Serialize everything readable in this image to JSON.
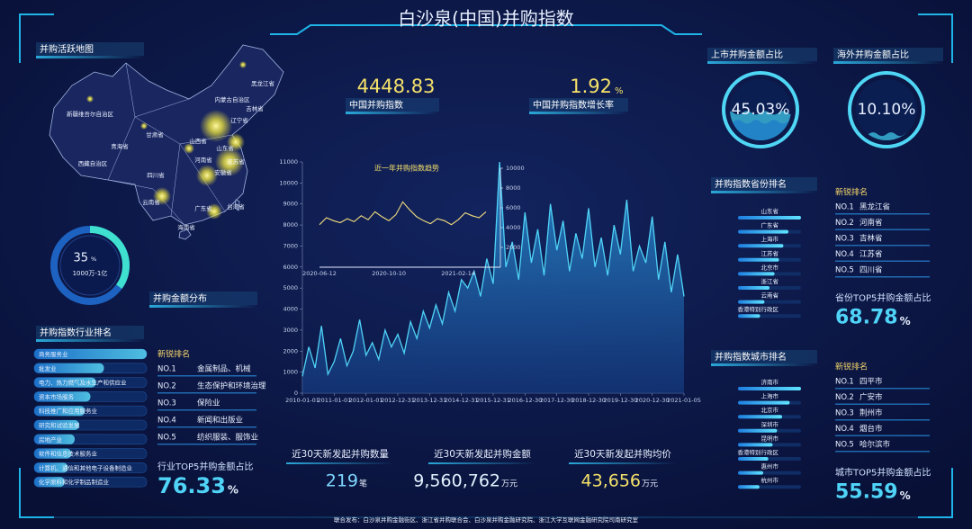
{
  "title": "白沙泉(中国)并购指数",
  "map": {
    "title": "并购活跃地图",
    "labels": [
      "黑龙江省",
      "内蒙古自治区",
      "吉林省",
      "辽宁省",
      "新疆维吾尔自治区",
      "青海省",
      "西藏自治区",
      "甘肃省",
      "山西省",
      "山东省",
      "河南省",
      "江苏省",
      "安徽省",
      "四川省",
      "云南省",
      "台湾省",
      "海南省",
      "广东省"
    ]
  },
  "amount_distribution": {
    "title": "并购金额分布",
    "value": 35,
    "unit": "%",
    "range": "1000万-1亿"
  },
  "industry_ranking": {
    "title": "并购指数行业排名",
    "items": [
      {
        "name": "商务服务业",
        "value": 100
      },
      {
        "name": "批发业",
        "value": 62
      },
      {
        "name": "电力、热力燃气及水生产和供应业",
        "value": 55
      },
      {
        "name": "资本市场服务",
        "value": 50
      },
      {
        "name": "科技推广和应用服务业",
        "value": 45
      },
      {
        "name": "研究和试验发展",
        "value": 40
      },
      {
        "name": "房地产业",
        "value": 36
      },
      {
        "name": "软件和信息技术服务业",
        "value": 33
      },
      {
        "name": "计算机、通信和其他电子设备制造业",
        "value": 30
      },
      {
        "name": "化学原料和化学制品制造业",
        "value": 27
      }
    ]
  },
  "industry_new": {
    "title": "新锐排名",
    "items": [
      {
        "rank": "NO.1",
        "name": "金属制品、机械"
      },
      {
        "rank": "NO.2",
        "name": "生态保护和环境治理"
      },
      {
        "rank": "NO.3",
        "name": "保险业"
      },
      {
        "rank": "NO.4",
        "name": "新闻和出版业"
      },
      {
        "rank": "NO.5",
        "name": "纺织服装、服饰业"
      }
    ],
    "share_label": "行业TOP5并购金额占比",
    "share": 76.33,
    "unit": "%"
  },
  "index": {
    "value": 4448.83,
    "label": "中国并购指数"
  },
  "growth": {
    "value": 1.92,
    "unit": "%",
    "label": "中国并购指数增长率"
  },
  "chart_data": [
    {
      "type": "line",
      "categories": [
        "2010-01-01",
        null,
        null,
        null,
        null,
        "2011-01-01",
        null,
        null,
        null,
        null,
        "2012-01-01",
        null,
        null,
        null,
        null,
        "2012-12-31",
        null,
        null,
        null,
        null,
        "2013-12-31",
        null,
        null,
        null,
        null,
        "2014-12-31",
        null,
        null,
        null,
        null,
        "2015-12-31",
        null,
        null,
        null,
        null,
        "2016-12-30",
        null,
        null,
        null,
        null,
        "2017-12-30",
        null,
        null,
        null,
        null,
        "2018-12-30",
        null,
        null,
        null,
        null,
        "2019-12-30",
        null,
        null,
        null,
        null,
        "2020-12-30",
        null,
        null,
        null,
        null,
        "2021-01-05"
      ],
      "series": [
        {
          "color": "#4fd3f7",
          "values": [
            800,
            2200,
            1200,
            3200,
            900,
            1500,
            2600,
            1300,
            2000,
            3500,
            1800,
            2400,
            1600,
            3000,
            2200,
            2800,
            1900,
            3400,
            2600,
            3900,
            3100,
            4200,
            3300,
            4800,
            3900,
            5400,
            5000,
            5800,
            4600,
            6400,
            5200,
            11000,
            6000,
            7200,
            5400,
            8600,
            6200,
            7800,
            5600,
            9000,
            6800,
            8200,
            5800,
            7600,
            6400,
            8800,
            6000,
            7400,
            5600,
            8000,
            6600,
            9200,
            5800,
            7000,
            6200,
            8400,
            5400,
            7200,
            4800,
            6600,
            4600
          ]
        }
      ],
      "ylim": [
        0,
        11000
      ],
      "yticks": [
        0,
        1000,
        2000,
        3000,
        4000,
        5000,
        6000,
        7000,
        8000,
        9000,
        10000,
        11000
      ]
    },
    {
      "type": "line",
      "title": "近一年并购指数趋势",
      "categories": [
        "2020-06-12",
        null,
        null,
        null,
        null,
        null,
        null,
        null,
        null,
        null,
        "2020-10-10",
        null,
        null,
        null,
        null,
        null,
        null,
        null,
        null,
        null,
        "2021-02-14",
        null,
        null,
        null,
        null
      ],
      "series": [
        {
          "color": "#f3de7c",
          "values": [
            4300,
            5000,
            4700,
            4500,
            4900,
            4600,
            5200,
            4800,
            5600,
            5100,
            4700,
            5300,
            6600,
            5800,
            5100,
            4700,
            4400,
            4900,
            4700,
            4300,
            4800,
            5500,
            5200,
            5000,
            5600
          ]
        }
      ],
      "ylim": [
        0,
        10000
      ],
      "yticks": [
        2000,
        4000,
        6000,
        8000,
        10000
      ]
    }
  ],
  "listed_share": {
    "title": "上市并购金额占比",
    "value": 45.03,
    "value_label": "45.03%"
  },
  "overseas_share": {
    "title": "海外并购金额占比",
    "value": 10.1,
    "value_label": "10.10%"
  },
  "province_ranking": {
    "title": "并购指数省份排名",
    "items": [
      {
        "name": "山东省",
        "value": 100
      },
      {
        "name": "广东省",
        "value": 80
      },
      {
        "name": "上海市",
        "value": 72
      },
      {
        "name": "江苏省",
        "value": 65
      },
      {
        "name": "北京市",
        "value": 58
      },
      {
        "name": "浙江省",
        "value": 50
      },
      {
        "name": "云南省",
        "value": 42
      },
      {
        "name": "香港特别行政区",
        "value": 35
      }
    ]
  },
  "province_new": {
    "title": "新锐排名",
    "items": [
      {
        "rank": "NO.1",
        "name": "黑龙江省"
      },
      {
        "rank": "NO.2",
        "name": "河南省"
      },
      {
        "rank": "NO.3",
        "name": "吉林省"
      },
      {
        "rank": "NO.4",
        "name": "江苏省"
      },
      {
        "rank": "NO.5",
        "name": "四川省"
      }
    ],
    "share_label": "省份TOP5并购金额占比",
    "share": 68.78,
    "unit": "%"
  },
  "city_ranking": {
    "title": "并购指数城市排名",
    "items": [
      {
        "name": "济南市",
        "value": 100
      },
      {
        "name": "上海市",
        "value": 82
      },
      {
        "name": "北京市",
        "value": 70
      },
      {
        "name": "深圳市",
        "value": 62
      },
      {
        "name": "昆明市",
        "value": 55
      },
      {
        "name": "香港特别行政区",
        "value": 48
      },
      {
        "name": "惠州市",
        "value": 40
      },
      {
        "name": "杭州市",
        "value": 34
      }
    ]
  },
  "city_new": {
    "title": "新锐排名",
    "items": [
      {
        "rank": "NO.1",
        "name": "四平市"
      },
      {
        "rank": "NO.2",
        "name": "广安市"
      },
      {
        "rank": "NO.3",
        "name": "荆州市"
      },
      {
        "rank": "NO.4",
        "name": "烟台市"
      },
      {
        "rank": "NO.5",
        "name": "哈尔滨市"
      }
    ],
    "share_label": "城市TOP5并购金额占比",
    "share": 55.59,
    "unit": "%"
  },
  "stats": [
    {
      "label": "近30天新发起并购数量",
      "value": "219",
      "unit": "笔"
    },
    {
      "label": "近30天新发起并购金额",
      "value": "9,560,762",
      "unit": "万元"
    },
    {
      "label": "近30天新发起并购均价",
      "value": "43,656",
      "unit": "万元"
    }
  ],
  "footer": "联合发布：白沙泉并购金融街区、浙江省并购联合会、白沙泉并购金融研究院、浙江大学互联网金融研究院司南研究室"
}
